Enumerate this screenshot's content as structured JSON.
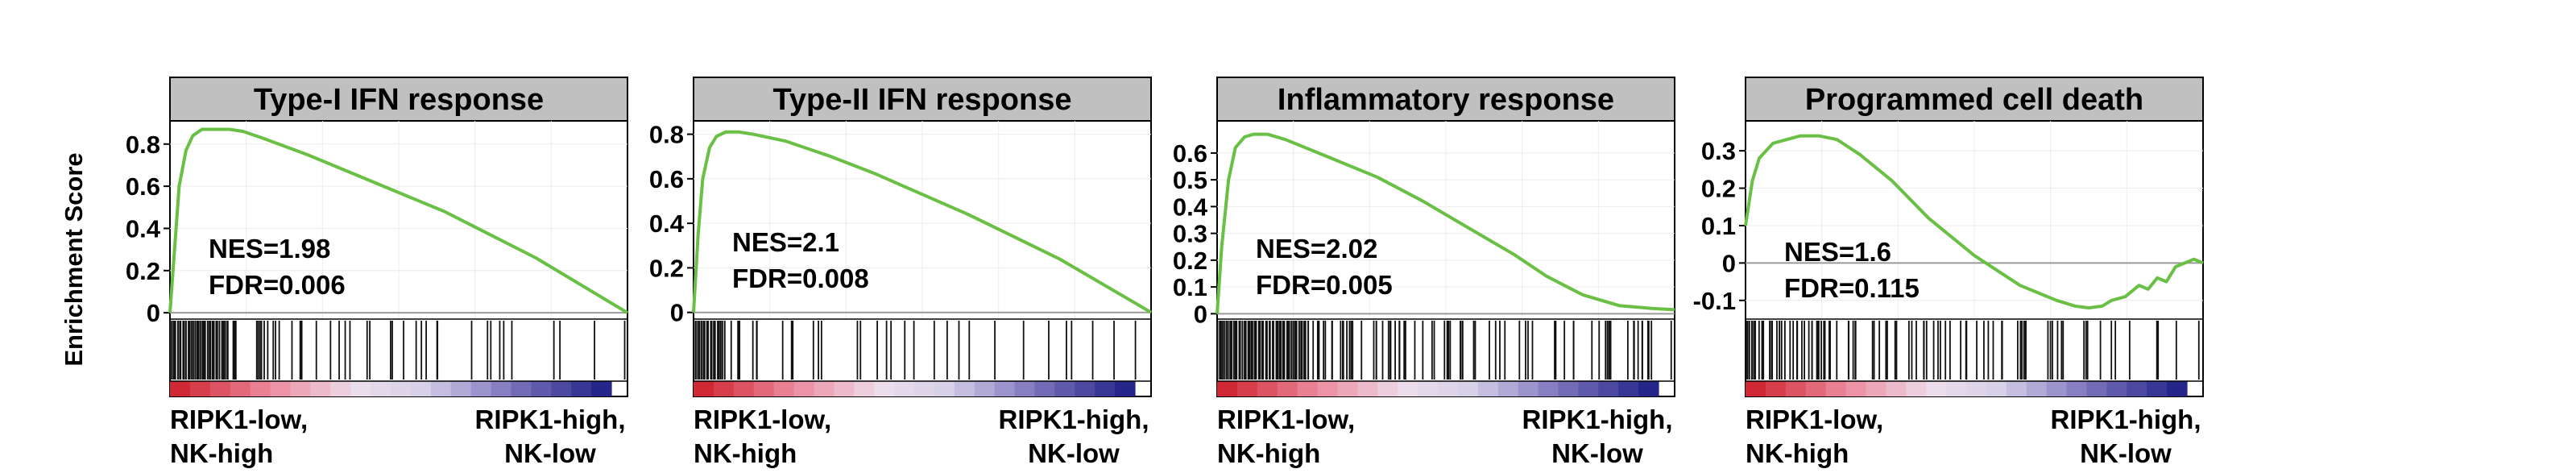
{
  "figure": {
    "ylabel": "Enrichment Score"
  },
  "chart_data": [
    {
      "type": "line",
      "title": "Type-I IFN response",
      "ylabel": "Enrichment Score",
      "yticks": [
        0,
        0.2,
        0.4,
        0.6,
        0.8
      ],
      "ylim": [
        -0.03,
        0.91
      ],
      "annotation": [
        "NES=1.98",
        "FDR=0.006"
      ],
      "xlabels": {
        "left": [
          "RIPK1-low,",
          "NK-high"
        ],
        "right": [
          "RIPK1-high,",
          "NK-low"
        ]
      },
      "curve": [
        [
          0,
          0
        ],
        [
          0.01,
          0.3
        ],
        [
          0.02,
          0.6
        ],
        [
          0.035,
          0.77
        ],
        [
          0.05,
          0.84
        ],
        [
          0.07,
          0.87
        ],
        [
          0.1,
          0.87
        ],
        [
          0.13,
          0.87
        ],
        [
          0.16,
          0.86
        ],
        [
          0.2,
          0.83
        ],
        [
          0.3,
          0.75
        ],
        [
          0.4,
          0.66
        ],
        [
          0.5,
          0.57
        ],
        [
          0.6,
          0.48
        ],
        [
          0.7,
          0.37
        ],
        [
          0.8,
          0.26
        ],
        [
          0.9,
          0.13
        ],
        [
          1,
          0
        ]
      ],
      "line_color": "#6abf45",
      "hits": {
        "dense_end": 0.13,
        "sparse_count": 42,
        "seed": 11
      }
    },
    {
      "type": "line",
      "title": "Type-II IFN response",
      "ylabel": "",
      "yticks": [
        0,
        0.2,
        0.4,
        0.6,
        0.8
      ],
      "ylim": [
        -0.03,
        0.86
      ],
      "annotation": [
        "NES=2.1",
        "FDR=0.008"
      ],
      "xlabels": {
        "left": [
          "RIPK1-low,",
          "NK-high"
        ],
        "right": [
          "RIPK1-high,",
          "NK-low"
        ]
      },
      "curve": [
        [
          0,
          0
        ],
        [
          0.01,
          0.35
        ],
        [
          0.02,
          0.6
        ],
        [
          0.035,
          0.74
        ],
        [
          0.05,
          0.79
        ],
        [
          0.07,
          0.81
        ],
        [
          0.1,
          0.81
        ],
        [
          0.13,
          0.8
        ],
        [
          0.2,
          0.77
        ],
        [
          0.3,
          0.7
        ],
        [
          0.4,
          0.62
        ],
        [
          0.5,
          0.53
        ],
        [
          0.6,
          0.44
        ],
        [
          0.7,
          0.34
        ],
        [
          0.8,
          0.24
        ],
        [
          0.9,
          0.12
        ],
        [
          1,
          0
        ]
      ],
      "line_color": "#6abf45",
      "hits": {
        "dense_end": 0.07,
        "sparse_count": 32,
        "seed": 23
      }
    },
    {
      "type": "line",
      "title": "Inflammatory response",
      "ylabel": "",
      "yticks": [
        0,
        0.1,
        0.2,
        0.3,
        0.4,
        0.5,
        0.6
      ],
      "ylim": [
        -0.02,
        0.72
      ],
      "annotation": [
        "NES=2.02",
        "FDR=0.005"
      ],
      "xlabels": {
        "left": [
          "RIPK1-low,",
          "NK-high"
        ],
        "right": [
          "RIPK1-high,",
          "NK-low"
        ]
      },
      "curve": [
        [
          0,
          0
        ],
        [
          0.01,
          0.25
        ],
        [
          0.025,
          0.5
        ],
        [
          0.04,
          0.62
        ],
        [
          0.06,
          0.66
        ],
        [
          0.08,
          0.67
        ],
        [
          0.11,
          0.67
        ],
        [
          0.15,
          0.65
        ],
        [
          0.25,
          0.58
        ],
        [
          0.35,
          0.51
        ],
        [
          0.45,
          0.42
        ],
        [
          0.55,
          0.32
        ],
        [
          0.65,
          0.22
        ],
        [
          0.72,
          0.14
        ],
        [
          0.8,
          0.07
        ],
        [
          0.88,
          0.03
        ],
        [
          0.95,
          0.02
        ],
        [
          1,
          0.015
        ]
      ],
      "line_color": "#6abf45",
      "hits": {
        "dense_end": 0.2,
        "sparse_count": 75,
        "seed": 37
      }
    },
    {
      "type": "line",
      "title": "Programmed cell death",
      "ylabel": "",
      "yticks": [
        -0.1,
        0,
        0.1,
        0.2,
        0.3
      ],
      "ylim": [
        -0.15,
        0.38
      ],
      "annotation": [
        "NES=1.6",
        "FDR=0.115"
      ],
      "xlabels": {
        "left": [
          "RIPK1-low,",
          "NK-high"
        ],
        "right": [
          "RIPK1-high,",
          "NK-low"
        ]
      },
      "curve": [
        [
          0,
          0.1
        ],
        [
          0.015,
          0.22
        ],
        [
          0.03,
          0.28
        ],
        [
          0.06,
          0.32
        ],
        [
          0.09,
          0.33
        ],
        [
          0.12,
          0.34
        ],
        [
          0.16,
          0.34
        ],
        [
          0.2,
          0.33
        ],
        [
          0.25,
          0.29
        ],
        [
          0.32,
          0.22
        ],
        [
          0.4,
          0.12
        ],
        [
          0.5,
          0.02
        ],
        [
          0.6,
          -0.06
        ],
        [
          0.68,
          -0.1
        ],
        [
          0.72,
          -0.115
        ],
        [
          0.75,
          -0.12
        ],
        [
          0.78,
          -0.115
        ],
        [
          0.8,
          -0.1
        ],
        [
          0.83,
          -0.09
        ],
        [
          0.86,
          -0.06
        ],
        [
          0.88,
          -0.07
        ],
        [
          0.9,
          -0.04
        ],
        [
          0.92,
          -0.05
        ],
        [
          0.94,
          -0.01
        ],
        [
          0.96,
          0.0
        ],
        [
          0.98,
          0.01
        ],
        [
          1,
          0.0
        ]
      ],
      "line_color": "#6abf45",
      "hits": {
        "dense_end": 0.02,
        "sparse_count": 95,
        "seed": 53
      }
    }
  ],
  "colors": {
    "title_bg": "#c0c0c0",
    "line": "#6abf45",
    "hit": "#111111",
    "grid": "#ececec",
    "zero_line": "#9a9a9a"
  }
}
